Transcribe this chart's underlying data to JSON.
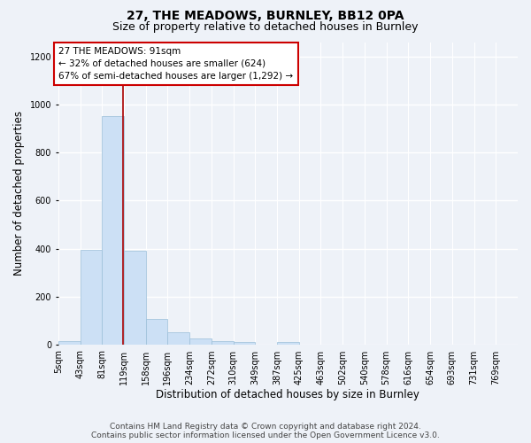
{
  "title": "27, THE MEADOWS, BURNLEY, BB12 0PA",
  "subtitle": "Size of property relative to detached houses in Burnley",
  "xlabel": "Distribution of detached houses by size in Burnley",
  "ylabel": "Number of detached properties",
  "bin_labels": [
    "5sqm",
    "43sqm",
    "81sqm",
    "119sqm",
    "158sqm",
    "196sqm",
    "234sqm",
    "272sqm",
    "310sqm",
    "349sqm",
    "387sqm",
    "425sqm",
    "463sqm",
    "502sqm",
    "540sqm",
    "578sqm",
    "616sqm",
    "654sqm",
    "693sqm",
    "731sqm",
    "769sqm"
  ],
  "bar_values": [
    15,
    395,
    950,
    390,
    105,
    50,
    25,
    15,
    12,
    0,
    12,
    0,
    0,
    0,
    0,
    0,
    0,
    0,
    0,
    0,
    0
  ],
  "bar_color": "#cce0f5",
  "bar_edgecolor": "#9bbfd8",
  "ylim": [
    0,
    1260
  ],
  "yticks": [
    0,
    200,
    400,
    600,
    800,
    1000,
    1200
  ],
  "vline_bar_index": 2,
  "vline_color": "#aa0000",
  "annotation_text": "27 THE MEADOWS: 91sqm\n← 32% of detached houses are smaller (624)\n67% of semi-detached houses are larger (1,292) →",
  "annotation_box_color": "#ffffff",
  "annotation_box_edgecolor": "#cc0000",
  "footer_line1": "Contains HM Land Registry data © Crown copyright and database right 2024.",
  "footer_line2": "Contains public sector information licensed under the Open Government Licence v3.0.",
  "background_color": "#eef2f8",
  "grid_color": "#ffffff",
  "title_fontsize": 10,
  "subtitle_fontsize": 9,
  "label_fontsize": 8.5,
  "tick_fontsize": 7,
  "footer_fontsize": 6.5,
  "annotation_fontsize": 7.5
}
